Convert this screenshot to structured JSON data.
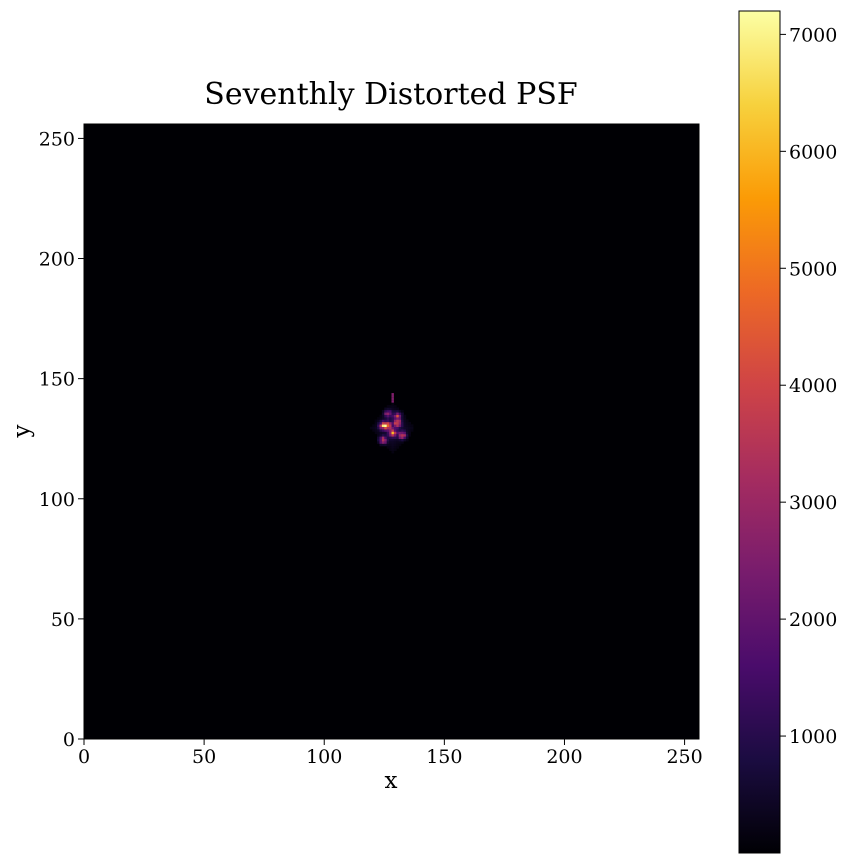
{
  "chart_data": {
    "type": "heatmap",
    "title": "Seventhly Distorted PSF",
    "xlabel": "x",
    "ylabel": "y",
    "xlim": [
      0,
      256
    ],
    "ylim": [
      0,
      256
    ],
    "xticks": [
      0,
      50,
      100,
      150,
      200,
      250
    ],
    "yticks": [
      0,
      50,
      100,
      150,
      200,
      250
    ],
    "xtick_labels": [
      "0",
      "50",
      "100",
      "150",
      "200",
      "250"
    ],
    "ytick_labels": [
      "0",
      "50",
      "100",
      "150",
      "200",
      "250"
    ],
    "colormap": "inferno",
    "background_color": "#000004",
    "colorbar": {
      "min": 0,
      "max": 7200,
      "ticks": [
        1000,
        2000,
        3000,
        4000,
        5000,
        6000,
        7000
      ],
      "tick_labels": [
        "1000",
        "2000",
        "3000",
        "4000",
        "5000",
        "6000",
        "7000"
      ],
      "colors": [
        "#000004",
        "#1b0c41",
        "#4a0c6b",
        "#781c6d",
        "#a52c60",
        "#cf4446",
        "#ed6925",
        "#fb9b06",
        "#f7d13d",
        "#fcffa4"
      ]
    },
    "psf_source": {
      "center": [
        128,
        129
      ],
      "extent_x": [
        118,
        136
      ],
      "extent_y": [
        118,
        143
      ],
      "peak_value": 7200,
      "bright_spots": [
        {
          "x": 124,
          "y": 130,
          "value": 5600
        },
        {
          "x": 126,
          "y": 130,
          "value": 5000
        },
        {
          "x": 130,
          "y": 131,
          "value": 4800
        },
        {
          "x": 128,
          "y": 127,
          "value": 5200
        },
        {
          "x": 124,
          "y": 124,
          "value": 4200
        },
        {
          "x": 132,
          "y": 126,
          "value": 4400
        },
        {
          "x": 130,
          "y": 134,
          "value": 3600
        },
        {
          "x": 126,
          "y": 135,
          "value": 3000
        }
      ]
    }
  }
}
